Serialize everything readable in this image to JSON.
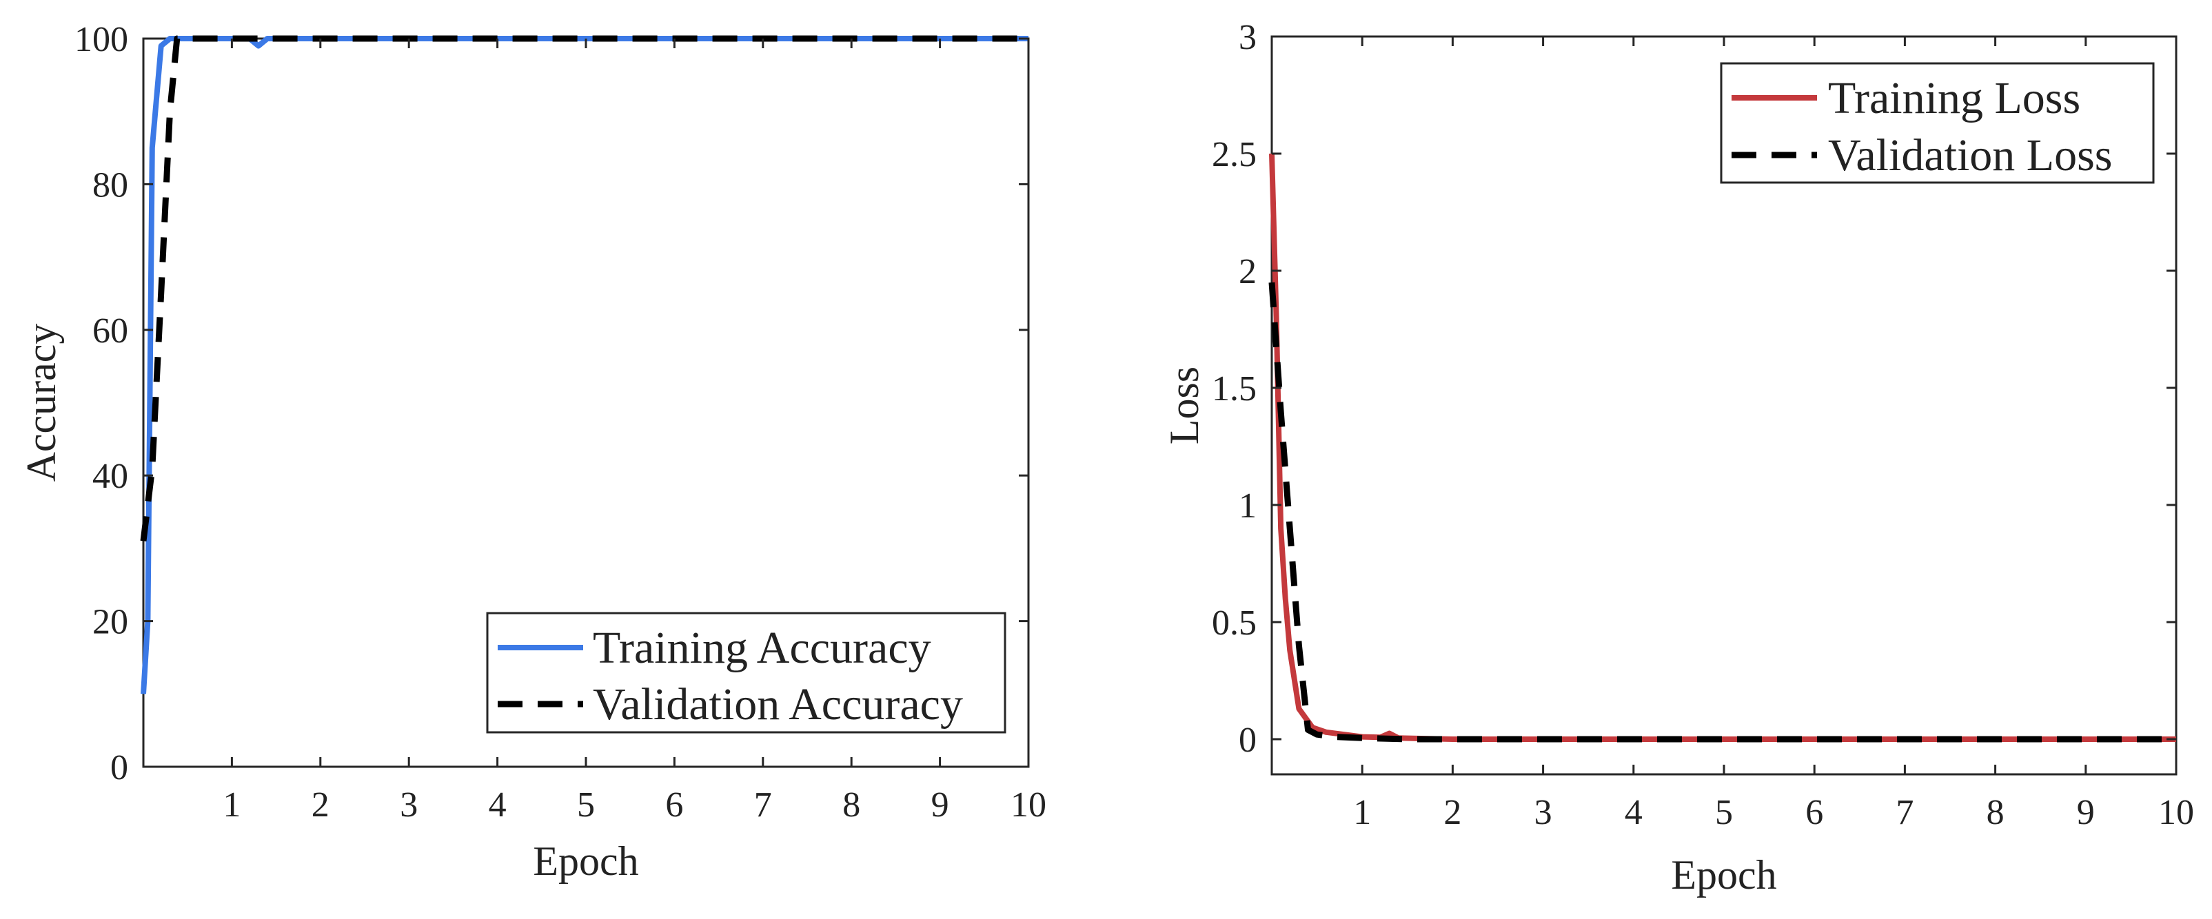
{
  "chart_data": [
    {
      "type": "line",
      "xlabel": "Epoch",
      "ylabel": "Accuracy",
      "xlim": [
        0,
        10
      ],
      "ylim": [
        0,
        100
      ],
      "xticks": [
        1,
        2,
        3,
        4,
        5,
        6,
        7,
        8,
        9,
        10
      ],
      "yticks": [
        0,
        20,
        40,
        60,
        80,
        100
      ],
      "xtick_labels": [
        "1",
        "2",
        "3",
        "4",
        "5",
        "6",
        "7",
        "8",
        "9",
        "10"
      ],
      "ytick_labels": [
        "0",
        "20",
        "40",
        "60",
        "80",
        "100"
      ],
      "grid": false,
      "legend_position": "bottom-right",
      "series": [
        {
          "name": "Training Accuracy",
          "color": "#3b79e6",
          "style": "solid",
          "x": [
            0,
            0.05,
            0.1,
            0.2,
            0.3,
            0.4,
            0.5,
            1.0,
            1.2,
            1.3,
            1.4,
            2,
            3,
            4,
            5,
            6,
            7,
            8,
            9,
            10
          ],
          "y": [
            10,
            20,
            85,
            99,
            100,
            100,
            100,
            100,
            100,
            99,
            100,
            100,
            100,
            100,
            100,
            100,
            100,
            100,
            100,
            100
          ]
        },
        {
          "name": "Validation Accuracy",
          "color": "#000000",
          "style": "dashed",
          "x": [
            0,
            0.1,
            0.2,
            0.3,
            0.38,
            0.45,
            1,
            2,
            3,
            4,
            5,
            6,
            7,
            8,
            9,
            10
          ],
          "y": [
            31,
            41,
            65,
            90,
            100,
            100,
            100,
            100,
            100,
            100,
            100,
            100,
            100,
            100,
            100,
            100
          ]
        }
      ]
    },
    {
      "type": "line",
      "xlabel": "Epoch",
      "ylabel": "Loss",
      "xlim": [
        0,
        10
      ],
      "ylim": [
        -0.15,
        3
      ],
      "xticks": [
        1,
        2,
        3,
        4,
        5,
        6,
        7,
        8,
        9,
        10
      ],
      "yticks": [
        0,
        0.5,
        1,
        1.5,
        2,
        2.5,
        3
      ],
      "xtick_labels": [
        "1",
        "2",
        "3",
        "4",
        "5",
        "6",
        "7",
        "8",
        "9",
        "10"
      ],
      "ytick_labels": [
        "0",
        "0.5",
        "1",
        "1.5",
        "2",
        "2.5",
        "3"
      ],
      "grid": false,
      "legend_position": "top-right",
      "series": [
        {
          "name": "Training Loss",
          "color": "#c4393c",
          "style": "solid",
          "x": [
            0,
            0.05,
            0.1,
            0.15,
            0.2,
            0.3,
            0.45,
            0.6,
            0.8,
            1.0,
            1.2,
            1.3,
            1.4,
            2,
            3,
            4,
            5,
            6,
            7,
            8,
            9,
            10
          ],
          "y": [
            2.5,
            1.8,
            0.9,
            0.6,
            0.38,
            0.13,
            0.05,
            0.03,
            0.02,
            0.01,
            0.008,
            0.025,
            0.005,
            0,
            0,
            0,
            0,
            0,
            0,
            0,
            0,
            0
          ],
          "dashed": false
        },
        {
          "name": "Validation Loss",
          "color": "#000000",
          "style": "dashed",
          "x": [
            0,
            0.1,
            0.2,
            0.3,
            0.4,
            0.5,
            0.7,
            1.0,
            1.5,
            2,
            3,
            4,
            5,
            6,
            7,
            8,
            9,
            10
          ],
          "y": [
            1.95,
            1.4,
            0.9,
            0.4,
            0.04,
            0.02,
            0.01,
            0.005,
            0,
            0,
            0,
            0,
            0,
            0,
            0,
            0,
            0,
            0
          ]
        }
      ]
    }
  ]
}
